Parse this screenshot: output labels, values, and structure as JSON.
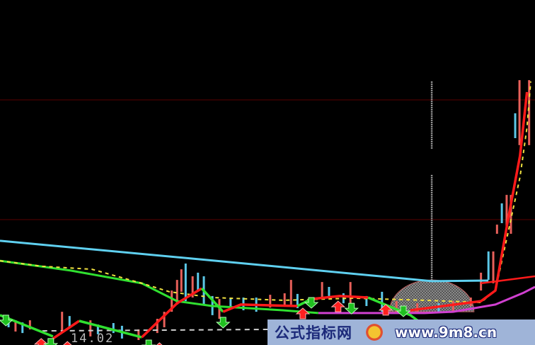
{
  "chart_data": {
    "type": "candlestick",
    "price_label": "14.02",
    "colors": {
      "up": "#e8605a",
      "down": "#5cc8e8",
      "grid": "#5a0000",
      "ma_cyan": "#5fd0f0",
      "ma_green": "#30e030",
      "ma_magenta": "#d040d0",
      "ma_yellow": "#f0e040",
      "short_red": "#ff1a1a",
      "short_green": "#30e030",
      "dashed_white": "#d0d0d0",
      "marker_gray": "#9a9a9a",
      "dome": "#707070"
    },
    "candles": [
      [
        1.6,
        15.07,
        14.6,
        "down"
      ],
      [
        2.9,
        14.93,
        14.4,
        "up"
      ],
      [
        4.2,
        14.83,
        14.33,
        "down"
      ],
      [
        5.6,
        14.93,
        14.5,
        "up"
      ],
      [
        11.6,
        15.33,
        14.47,
        "up"
      ],
      [
        13.0,
        15.13,
        14.6,
        "down"
      ],
      [
        16.9,
        14.93,
        14.17,
        "up"
      ],
      [
        18.3,
        14.73,
        14.27,
        "down"
      ],
      [
        21.2,
        14.8,
        14.33,
        "down"
      ],
      [
        22.8,
        14.67,
        14.07,
        "down"
      ],
      [
        25.9,
        14.5,
        14.0,
        "up"
      ],
      [
        29.4,
        15.0,
        14.33,
        "up"
      ],
      [
        30.7,
        15.33,
        14.6,
        "up"
      ],
      [
        32.1,
        16.33,
        15.33,
        "up"
      ],
      [
        33.1,
        16.83,
        15.67,
        "up"
      ],
      [
        33.9,
        17.33,
        16.27,
        "up"
      ],
      [
        34.7,
        17.6,
        15.83,
        "down"
      ],
      [
        36.0,
        17.0,
        16.0,
        "up"
      ],
      [
        37.0,
        17.17,
        16.33,
        "down"
      ],
      [
        38.1,
        17.0,
        15.67,
        "down"
      ],
      [
        39.7,
        16.07,
        15.17,
        "down"
      ],
      [
        41.0,
        15.93,
        15.0,
        "up"
      ],
      [
        43.1,
        16.0,
        15.47,
        "down"
      ],
      [
        45.5,
        16.0,
        15.4,
        "down"
      ],
      [
        47.9,
        16.0,
        15.33,
        "down"
      ],
      [
        50.5,
        16.13,
        15.53,
        "up"
      ],
      [
        53.2,
        16.2,
        15.6,
        "up"
      ],
      [
        54.4,
        16.83,
        15.67,
        "up"
      ],
      [
        55.6,
        16.17,
        15.5,
        "down"
      ],
      [
        60.2,
        16.73,
        16.0,
        "up"
      ],
      [
        61.5,
        16.5,
        16.07,
        "down"
      ],
      [
        64.2,
        16.2,
        15.73,
        "down"
      ],
      [
        65.5,
        16.73,
        15.6,
        "up"
      ],
      [
        68.5,
        16.07,
        15.6,
        "down"
      ],
      [
        71.4,
        16.27,
        15.33,
        "down"
      ],
      [
        74.1,
        15.83,
        15.33,
        "up"
      ],
      [
        78.0,
        15.73,
        15.33,
        "up"
      ],
      [
        82.0,
        15.73,
        15.27,
        "down"
      ],
      [
        84.7,
        15.83,
        15.33,
        "up"
      ],
      [
        88.0,
        16.0,
        15.6,
        "up"
      ],
      [
        89.9,
        17.17,
        16.33,
        "up"
      ],
      [
        91.3,
        18.17,
        16.83,
        "down"
      ],
      [
        92.2,
        18.17,
        16.67,
        "up"
      ],
      [
        92.9,
        19.43,
        19.0,
        "up"
      ],
      [
        93.8,
        20.43,
        19.5,
        "down"
      ],
      [
        94.7,
        20.83,
        19.33,
        "up"
      ],
      [
        95.5,
        20.83,
        19.0,
        "up"
      ],
      [
        96.3,
        24.67,
        23.5,
        "down"
      ],
      [
        97.1,
        26.23,
        23.17,
        "up"
      ],
      [
        98.9,
        26.23,
        23.17,
        "up"
      ]
    ],
    "lines": {
      "cyan": [
        [
          0,
          18.67
        ],
        [
          40.3,
          17.73
        ],
        [
          80.7,
          16.77
        ],
        [
          91.3,
          16.8
        ]
      ],
      "green_long": [
        [
          0,
          17.73
        ],
        [
          13.2,
          17.27
        ],
        [
          26.5,
          16.67
        ],
        [
          33.1,
          15.83
        ],
        [
          39.7,
          15.6
        ],
        [
          52.9,
          15.4
        ],
        [
          59.5,
          15.27
        ]
      ],
      "magenta": [
        [
          59.5,
          15.27
        ],
        [
          79.4,
          15.27
        ],
        [
          84.7,
          15.33
        ],
        [
          92.6,
          15.67
        ],
        [
          97.9,
          16.23
        ],
        [
          100,
          16.5
        ]
      ],
      "yellow_dashed": [
        [
          0,
          17.73
        ],
        [
          7.9,
          17.47
        ],
        [
          17.2,
          17.33
        ],
        [
          26.5,
          16.67
        ],
        [
          31.7,
          16.27
        ],
        [
          39.7,
          16.0
        ],
        [
          52.9,
          15.87
        ],
        [
          66.1,
          15.97
        ],
        [
          79.4,
          15.87
        ],
        [
          89.9,
          15.77
        ],
        [
          92.6,
          16.33
        ],
        [
          95.2,
          19.33
        ],
        [
          97.2,
          21.67
        ],
        [
          98.5,
          24.0
        ],
        [
          99.2,
          26.17
        ]
      ],
      "red_long": [
        [
          89.9,
          16.67
        ],
        [
          100,
          17.0
        ]
      ],
      "white_dashed": [
        [
          7.9,
          14.43
        ],
        [
          50.3,
          14.5
        ]
      ]
    },
    "short_ma_segments": [
      {
        "color": "short_green",
        "points": [
          [
            0,
            15.17
          ],
          [
            9.9,
            14.17
          ]
        ]
      },
      {
        "color": "short_red",
        "points": [
          [
            9.9,
            14.07
          ],
          [
            14.8,
            14.9
          ]
        ]
      },
      {
        "color": "short_green",
        "points": [
          [
            14.8,
            14.9
          ],
          [
            26.5,
            14.13
          ]
        ]
      },
      {
        "color": "short_red",
        "points": [
          [
            26.5,
            14.13
          ],
          [
            33.1,
            15.73
          ],
          [
            37.7,
            16.43
          ]
        ]
      },
      {
        "color": "short_green",
        "points": [
          [
            37.7,
            16.43
          ],
          [
            41.7,
            15.33
          ]
        ]
      },
      {
        "color": "short_red",
        "points": [
          [
            41.7,
            15.33
          ],
          [
            45,
            15.67
          ],
          [
            55.6,
            15.6
          ]
        ]
      },
      {
        "color": "short_green",
        "points": [
          [
            55.6,
            15.6
          ],
          [
            58.2,
            15.93
          ]
        ]
      },
      {
        "color": "short_red",
        "points": [
          [
            58.2,
            15.93
          ],
          [
            63.5,
            16.07
          ],
          [
            68.8,
            16.0
          ]
        ]
      },
      {
        "color": "short_green",
        "points": [
          [
            68.8,
            16.0
          ],
          [
            76.7,
            15.17
          ],
          [
            79.4,
            14.67
          ]
        ]
      },
      {
        "color": "short_red",
        "points": [
          [
            76.7,
            15.4
          ],
          [
            89.9,
            15.83
          ],
          [
            92.6,
            16.33
          ],
          [
            95.2,
            20.0
          ],
          [
            97.2,
            22.67
          ],
          [
            98.5,
            25.67
          ]
        ]
      }
    ],
    "marker_line": {
      "x": 80.7,
      "segments": [
        [
          26.17,
          23.0
        ],
        [
          21.77,
          16.83
        ]
      ]
    },
    "dome": {
      "x_range": [
        72.8,
        88.6
      ],
      "base": 15.33,
      "peak": 16.83
    },
    "arrows": [
      [
        1.1,
        15.17,
        "down"
      ],
      [
        7.7,
        14.07,
        "up"
      ],
      [
        9.5,
        14.07,
        "down"
      ],
      [
        12.6,
        13.93,
        "up"
      ],
      [
        27.8,
        14.0,
        "down"
      ],
      [
        29.8,
        13.87,
        "up"
      ],
      [
        41.7,
        15.07,
        "down"
      ],
      [
        56.6,
        15.5,
        "up"
      ],
      [
        58.2,
        16.0,
        "down"
      ],
      [
        63.2,
        15.83,
        "up"
      ],
      [
        65.7,
        15.73,
        "down"
      ],
      [
        72.1,
        15.67,
        "up"
      ],
      [
        75.4,
        15.6,
        "down"
      ]
    ],
    "grid": true
  },
  "watermark": {
    "site_name": "公式指标网",
    "url": "www.9m8.cn"
  }
}
